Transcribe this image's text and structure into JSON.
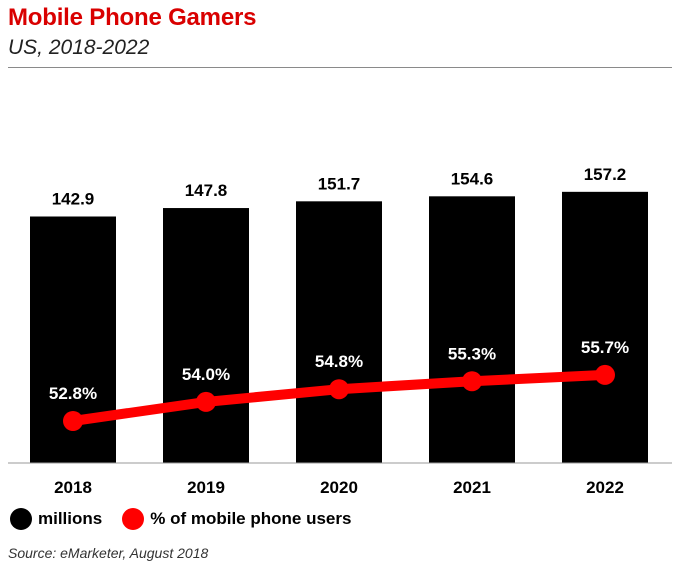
{
  "header": {
    "title": "Mobile Phone Gamers",
    "subtitle": "US, 2018-2022"
  },
  "legend": {
    "items": [
      {
        "label": "millions",
        "color": "#000000"
      },
      {
        "label": "% of mobile phone users",
        "color": "#ff0000"
      }
    ]
  },
  "source": "Source: eMarketer, August 2018",
  "colors": {
    "title": "#d90000",
    "bar": "#000000",
    "line": "#ff0000"
  },
  "chart_data": {
    "type": "bar",
    "categories": [
      "2018",
      "2019",
      "2020",
      "2021",
      "2022"
    ],
    "series": [
      {
        "name": "millions",
        "type": "bar",
        "values": [
          142.9,
          147.8,
          151.7,
          154.6,
          157.2
        ],
        "labels": [
          "142.9",
          "147.8",
          "151.7",
          "154.6",
          "157.2"
        ]
      },
      {
        "name": "% of mobile phone users",
        "type": "line",
        "values": [
          52.8,
          54.0,
          54.8,
          55.3,
          55.7
        ],
        "labels": [
          "52.8%",
          "54.0%",
          "54.8%",
          "55.3%",
          "55.7%"
        ]
      }
    ],
    "title": "Mobile Phone Gamers",
    "subtitle": "US, 2018-2022",
    "grid": false,
    "legend_position": "bottom-left"
  }
}
